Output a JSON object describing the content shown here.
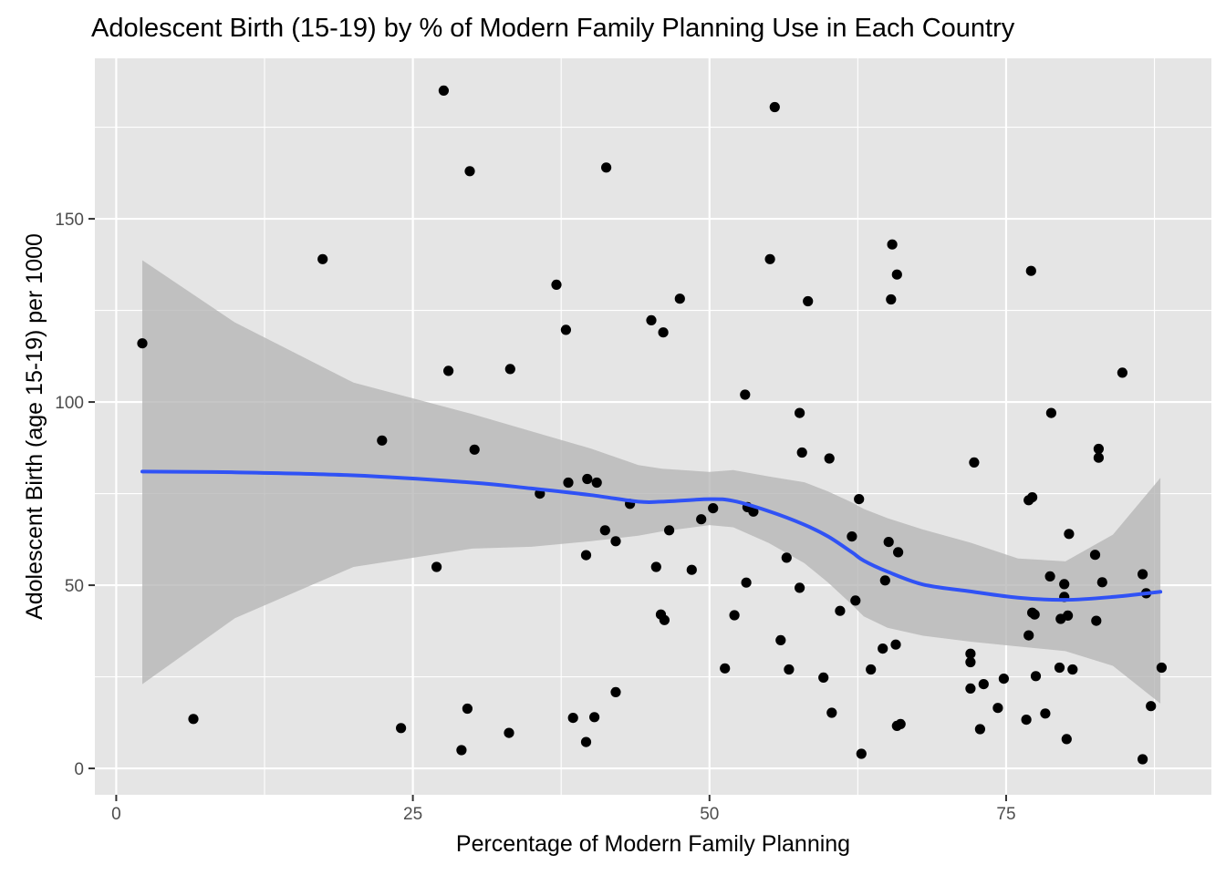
{
  "chart_data": {
    "type": "scatter",
    "title": "Adolescent Birth (15-19) by % of Modern Family Planning Use in Each Country",
    "xlabel": "Percentage of Modern Family Planning",
    "ylabel": "Adolescent Birth (age 15-19) per 1000",
    "xlim": [
      -1.8,
      92.3
    ],
    "ylim": [
      -7.2,
      193.8
    ],
    "x_ticks": [
      0,
      25,
      50,
      75
    ],
    "x_tick_labels": [
      "0",
      "25",
      "50",
      "75"
    ],
    "y_ticks": [
      0,
      50,
      100,
      150
    ],
    "y_tick_labels": [
      "0",
      "50",
      "100",
      "150"
    ],
    "grid": true,
    "legend": "none",
    "colors": {
      "panel": "#e5e5e5",
      "grid": "#ffffff",
      "point": "#000000",
      "smooth_line": "#3052f5",
      "confidence_band": "#b3b3b3"
    },
    "points": [
      {
        "x": 2.2,
        "y": 116
      },
      {
        "x": 6.5,
        "y": 13.5
      },
      {
        "x": 17.4,
        "y": 139
      },
      {
        "x": 22.4,
        "y": 89.5
      },
      {
        "x": 24.0,
        "y": 11
      },
      {
        "x": 27.0,
        "y": 55
      },
      {
        "x": 27.6,
        "y": 185
      },
      {
        "x": 28.0,
        "y": 108.5
      },
      {
        "x": 29.1,
        "y": 5
      },
      {
        "x": 29.6,
        "y": 16.3
      },
      {
        "x": 29.8,
        "y": 163
      },
      {
        "x": 30.2,
        "y": 87
      },
      {
        "x": 33.1,
        "y": 9.7
      },
      {
        "x": 33.2,
        "y": 109
      },
      {
        "x": 35.7,
        "y": 75
      },
      {
        "x": 37.1,
        "y": 132
      },
      {
        "x": 37.9,
        "y": 119.7
      },
      {
        "x": 38.1,
        "y": 78
      },
      {
        "x": 38.5,
        "y": 13.8
      },
      {
        "x": 39.6,
        "y": 7.2
      },
      {
        "x": 39.6,
        "y": 58.2
      },
      {
        "x": 39.7,
        "y": 79
      },
      {
        "x": 40.3,
        "y": 14
      },
      {
        "x": 40.5,
        "y": 78
      },
      {
        "x": 41.2,
        "y": 65
      },
      {
        "x": 41.3,
        "y": 164
      },
      {
        "x": 42.1,
        "y": 62
      },
      {
        "x": 42.1,
        "y": 20.8
      },
      {
        "x": 43.3,
        "y": 72.2
      },
      {
        "x": 45.1,
        "y": 122.3
      },
      {
        "x": 45.5,
        "y": 55
      },
      {
        "x": 45.9,
        "y": 42
      },
      {
        "x": 46.1,
        "y": 119
      },
      {
        "x": 46.2,
        "y": 40.5
      },
      {
        "x": 46.6,
        "y": 65
      },
      {
        "x": 47.5,
        "y": 128.2
      },
      {
        "x": 48.5,
        "y": 54.2
      },
      {
        "x": 49.3,
        "y": 68
      },
      {
        "x": 50.3,
        "y": 71
      },
      {
        "x": 51.3,
        "y": 27.3
      },
      {
        "x": 52.1,
        "y": 41.8
      },
      {
        "x": 53.0,
        "y": 102
      },
      {
        "x": 53.1,
        "y": 50.7
      },
      {
        "x": 53.2,
        "y": 71.3
      },
      {
        "x": 53.7,
        "y": 70.1
      },
      {
        "x": 55.1,
        "y": 139
      },
      {
        "x": 55.5,
        "y": 180.5
      },
      {
        "x": 56.0,
        "y": 35
      },
      {
        "x": 56.5,
        "y": 57.5
      },
      {
        "x": 56.7,
        "y": 27
      },
      {
        "x": 57.6,
        "y": 97
      },
      {
        "x": 57.6,
        "y": 49.3
      },
      {
        "x": 57.8,
        "y": 86.2
      },
      {
        "x": 58.3,
        "y": 127.5
      },
      {
        "x": 59.6,
        "y": 24.8
      },
      {
        "x": 60.1,
        "y": 84.6
      },
      {
        "x": 60.3,
        "y": 15.2
      },
      {
        "x": 61.0,
        "y": 43
      },
      {
        "x": 62.0,
        "y": 63.3
      },
      {
        "x": 62.3,
        "y": 45.8
      },
      {
        "x": 62.6,
        "y": 73.5
      },
      {
        "x": 62.8,
        "y": 4
      },
      {
        "x": 63.6,
        "y": 27
      },
      {
        "x": 64.6,
        "y": 32.7
      },
      {
        "x": 64.8,
        "y": 51.3
      },
      {
        "x": 65.1,
        "y": 61.8
      },
      {
        "x": 65.3,
        "y": 128
      },
      {
        "x": 65.4,
        "y": 143
      },
      {
        "x": 65.7,
        "y": 33.8
      },
      {
        "x": 65.8,
        "y": 134.8
      },
      {
        "x": 65.8,
        "y": 11.6
      },
      {
        "x": 65.9,
        "y": 59
      },
      {
        "x": 66.1,
        "y": 12.1
      },
      {
        "x": 72.0,
        "y": 21.8
      },
      {
        "x": 72.0,
        "y": 31.3
      },
      {
        "x": 72.0,
        "y": 29
      },
      {
        "x": 72.3,
        "y": 83.5
      },
      {
        "x": 72.8,
        "y": 10.7
      },
      {
        "x": 73.1,
        "y": 23
      },
      {
        "x": 74.3,
        "y": 16.5
      },
      {
        "x": 74.8,
        "y": 24.5
      },
      {
        "x": 76.7,
        "y": 13.3
      },
      {
        "x": 76.9,
        "y": 36.3
      },
      {
        "x": 76.9,
        "y": 73.2
      },
      {
        "x": 77.1,
        "y": 135.8
      },
      {
        "x": 77.2,
        "y": 42.5
      },
      {
        "x": 77.2,
        "y": 74
      },
      {
        "x": 77.4,
        "y": 42
      },
      {
        "x": 77.5,
        "y": 25.2
      },
      {
        "x": 78.3,
        "y": 15
      },
      {
        "x": 78.7,
        "y": 52.4
      },
      {
        "x": 78.8,
        "y": 97
      },
      {
        "x": 79.5,
        "y": 27.5
      },
      {
        "x": 79.6,
        "y": 40.8
      },
      {
        "x": 79.9,
        "y": 50.3
      },
      {
        "x": 79.9,
        "y": 46.8
      },
      {
        "x": 80.1,
        "y": 8
      },
      {
        "x": 80.2,
        "y": 41.7
      },
      {
        "x": 80.3,
        "y": 64
      },
      {
        "x": 80.6,
        "y": 27
      },
      {
        "x": 82.5,
        "y": 58.3
      },
      {
        "x": 82.6,
        "y": 40.3
      },
      {
        "x": 82.8,
        "y": 84.8
      },
      {
        "x": 82.8,
        "y": 87.2
      },
      {
        "x": 83.1,
        "y": 50.8
      },
      {
        "x": 84.8,
        "y": 108
      },
      {
        "x": 86.5,
        "y": 53
      },
      {
        "x": 86.5,
        "y": 2.5
      },
      {
        "x": 86.8,
        "y": 47.8
      },
      {
        "x": 87.2,
        "y": 17
      },
      {
        "x": 88.1,
        "y": 27.5
      }
    ],
    "smooth": {
      "x": [
        2.2,
        10,
        20,
        30,
        35,
        40,
        44,
        46,
        50,
        52,
        55,
        58,
        60,
        62,
        63,
        65,
        68,
        72,
        76,
        80,
        84,
        88
      ],
      "y": [
        81,
        80.8,
        80,
        78,
        76.4,
        74.6,
        72.8,
        72.8,
        73.5,
        73.0,
        70.2,
        66.5,
        63.3,
        59.0,
        56.7,
        53.7,
        50.2,
        48.3,
        46.6,
        46.0,
        46.8,
        48.2
      ],
      "y_lower": [
        23,
        41,
        55,
        60,
        60.5,
        62,
        63.5,
        64.7,
        66.4,
        65.8,
        61.5,
        56,
        50.7,
        44.7,
        41.5,
        38.4,
        36.2,
        34.6,
        33.3,
        32,
        28,
        17.7
      ],
      "y_upper": [
        138.7,
        121.7,
        105.3,
        96.7,
        92,
        87.3,
        82.8,
        81.8,
        80.9,
        81.4,
        79.7,
        78.1,
        75.6,
        72.6,
        70.8,
        68.3,
        65.2,
        61.6,
        57.3,
        56.5,
        63.8,
        79.3
      ]
    }
  }
}
